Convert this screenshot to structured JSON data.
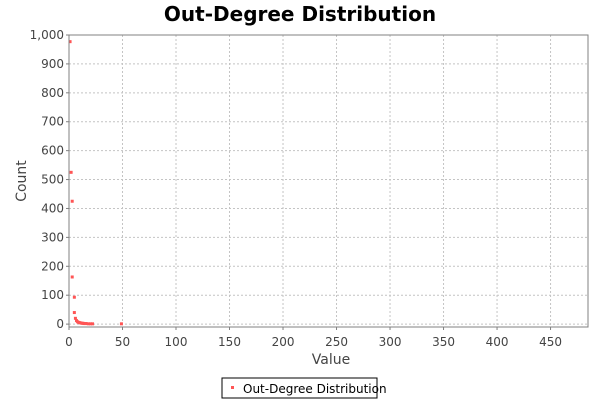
{
  "chart_data": {
    "type": "scatter",
    "title": "Out-Degree Distribution",
    "xlabel": "Value",
    "ylabel": "Count",
    "xlim": [
      0,
      485
    ],
    "ylim": [
      -10,
      1000
    ],
    "x_ticks": [
      0,
      50,
      100,
      150,
      200,
      250,
      300,
      350,
      400,
      450
    ],
    "x_tick_labels": [
      "0",
      "50",
      "100",
      "150",
      "200",
      "250",
      "300",
      "350",
      "400",
      "450"
    ],
    "y_ticks": [
      0,
      100,
      200,
      300,
      400,
      500,
      600,
      700,
      800,
      900,
      1000
    ],
    "y_tick_labels": [
      "0",
      "100",
      "200",
      "300",
      "400",
      "500",
      "600",
      "700",
      "800",
      "900",
      "1,000"
    ],
    "grid": true,
    "legend_position": "bottom-center",
    "series": [
      {
        "name": "Out-Degree Distribution",
        "color": "#ff5555",
        "points": [
          {
            "x": 1,
            "y": 977
          },
          {
            "x": 2,
            "y": 525
          },
          {
            "x": 3,
            "y": 425
          },
          {
            "x": 3,
            "y": 163
          },
          {
            "x": 5,
            "y": 93
          },
          {
            "x": 5,
            "y": 40
          },
          {
            "x": 6,
            "y": 20
          },
          {
            "x": 7,
            "y": 12
          },
          {
            "x": 8,
            "y": 8
          },
          {
            "x": 9,
            "y": 6
          },
          {
            "x": 10,
            "y": 5
          },
          {
            "x": 11,
            "y": 4
          },
          {
            "x": 12,
            "y": 3
          },
          {
            "x": 13,
            "y": 3
          },
          {
            "x": 14,
            "y": 2
          },
          {
            "x": 15,
            "y": 2
          },
          {
            "x": 16,
            "y": 2
          },
          {
            "x": 18,
            "y": 1
          },
          {
            "x": 20,
            "y": 1
          },
          {
            "x": 22,
            "y": 1
          },
          {
            "x": 49,
            "y": 1
          }
        ]
      }
    ]
  }
}
